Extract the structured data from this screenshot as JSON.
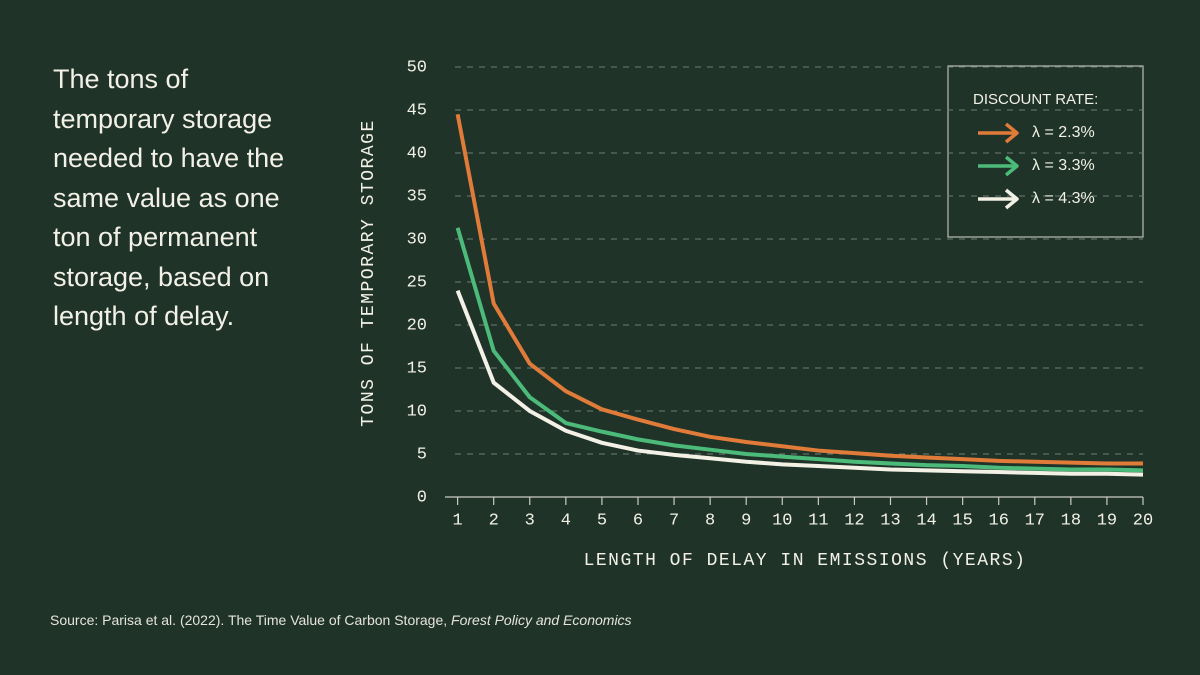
{
  "chart_data": {
    "type": "line",
    "title": "The tons of temporary storage needed to have the same value as one ton of permanent storage, based on length of delay.",
    "x_label": "LENGTH OF DELAY IN EMISSIONS (YEARS)",
    "y_label": "TONS OF TEMPORARY STORAGE",
    "legend_title": "DISCOUNT RATE:",
    "legend_position": "upper right",
    "source": "Source: Parisa et al. (2022). The Time Value of Carbon Storage,",
    "source_journal": "Forest Policy and Economics",
    "x": [
      1,
      2,
      3,
      4,
      5,
      6,
      7,
      8,
      9,
      10,
      11,
      12,
      13,
      14,
      15,
      16,
      17,
      18,
      19,
      20
    ],
    "series": [
      {
        "name": "λ = 2.3%",
        "color": "#e07b39",
        "values": [
          44.5,
          22.5,
          15.5,
          12.3,
          10.2,
          9,
          7.9,
          7,
          6.4,
          5.9,
          5.4,
          5.1,
          4.8,
          4.6,
          4.4,
          4.2,
          4.1,
          4.0,
          3.9,
          3.9
        ]
      },
      {
        "name": "λ = 3.3%",
        "color": "#4cbb7a",
        "values": [
          31.3,
          17,
          11.6,
          8.6,
          7.6,
          6.7,
          6,
          5.5,
          5,
          4.7,
          4.4,
          4.1,
          3.9,
          3.7,
          3.6,
          3.4,
          3.3,
          3.2,
          3.2,
          3.1
        ]
      },
      {
        "name": "λ = 4.3%",
        "color": "#f3f1e6",
        "values": [
          24,
          13.3,
          10,
          7.7,
          6.3,
          5.4,
          4.9,
          4.5,
          4.1,
          3.8,
          3.6,
          3.4,
          3.2,
          3.1,
          3.0,
          2.9,
          2.8,
          2.7,
          2.7,
          2.6
        ]
      }
    ],
    "xlim": [
      0.65,
      20
    ],
    "ylim": [
      0,
      50
    ],
    "xticks": [
      1,
      2,
      3,
      4,
      5,
      6,
      7,
      8,
      9,
      10,
      11,
      12,
      13,
      14,
      15,
      16,
      17,
      18,
      19,
      20
    ],
    "yticks": [
      0,
      5,
      10,
      15,
      20,
      25,
      30,
      35,
      40,
      45,
      50
    ],
    "grid": true
  }
}
